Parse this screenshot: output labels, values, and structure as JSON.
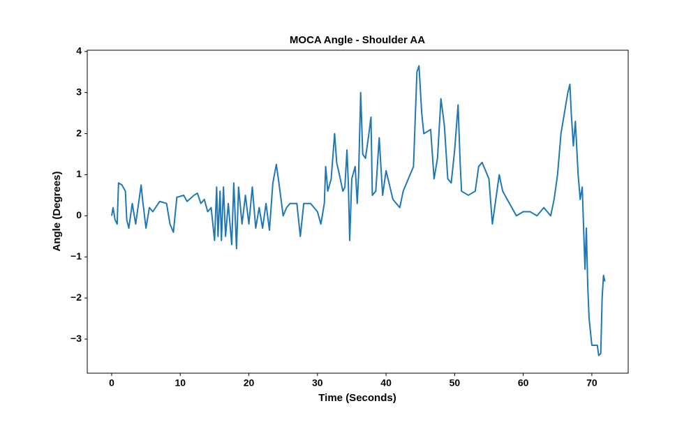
{
  "chart_data": {
    "type": "line",
    "title": "MOCA Angle - Shoulder AA",
    "x_label": "Time (Seconds)",
    "y_label": "Angle (Degrees)",
    "color": "#1f77b4",
    "grid": false,
    "xlim": [
      -3.56,
      75.3
    ],
    "ylim": [
      -3.83,
      4.03
    ],
    "xticks": [
      0,
      10,
      20,
      30,
      40,
      50,
      60,
      70
    ],
    "yticks": [
      {
        "value": -3,
        "label": "−3"
      },
      {
        "value": -2,
        "label": "−2"
      },
      {
        "value": -1,
        "label": "−1"
      },
      0,
      1,
      2,
      3,
      4
    ],
    "x": [
      0,
      0.2,
      0.5,
      0.8,
      1.0,
      1.5,
      2.0,
      2.2,
      2.5,
      3.0,
      3.5,
      4.0,
      4.3,
      4.5,
      5.0,
      5.5,
      6.0,
      7.0,
      8.0,
      8.5,
      9.0,
      9.5,
      10.5,
      11.0,
      12.0,
      12.5,
      13.0,
      13.5,
      14.0,
      14.5,
      15.0,
      15.3,
      15.5,
      15.8,
      16.0,
      16.3,
      16.6,
      17.0,
      17.5,
      17.8,
      18.2,
      18.5,
      19.0,
      19.5,
      20.0,
      20.5,
      21.0,
      21.5,
      22.0,
      22.5,
      23.0,
      23.5,
      24.0,
      24.3,
      25.0,
      25.5,
      26.0,
      27.0,
      27.5,
      28.0,
      29.0,
      30.0,
      30.5,
      31.0,
      31.2,
      31.5,
      32.0,
      32.5,
      32.8,
      33.2,
      33.7,
      34.0,
      34.3,
      34.5,
      34.7,
      35.0,
      35.5,
      35.8,
      36.0,
      36.3,
      36.6,
      37.0,
      37.5,
      37.8,
      38.0,
      38.5,
      39.0,
      39.5,
      40.0,
      41.0,
      41.5,
      42.0,
      42.5,
      43.0,
      43.5,
      44.0,
      44.5,
      44.8,
      45.2,
      45.5,
      46.5,
      47.0,
      47.5,
      48.0,
      48.5,
      49.0,
      49.5,
      50.0,
      50.5,
      50.8,
      51.0,
      52.0,
      53.0,
      53.5,
      54.0,
      55.0,
      55.5,
      56.0,
      56.5,
      57.0,
      58.0,
      59.0,
      60.0,
      61.0,
      62.0,
      63.0,
      64.0,
      64.5,
      65.0,
      65.5,
      66.0,
      66.5,
      66.8,
      67.0,
      67.3,
      67.6,
      68.0,
      68.3,
      68.6,
      69.0,
      69.2,
      69.4,
      69.6,
      70.0,
      70.8,
      71.0,
      71.3,
      71.5,
      71.7,
      71.9
    ],
    "values": [
      0.0,
      0.2,
      -0.1,
      -0.2,
      0.8,
      0.75,
      0.6,
      -0.1,
      -0.3,
      0.3,
      -0.2,
      0.4,
      0.75,
      0.4,
      -0.3,
      0.2,
      0.1,
      0.35,
      0.3,
      -0.2,
      -0.4,
      0.45,
      0.5,
      0.35,
      0.5,
      0.55,
      0.3,
      0.4,
      0.1,
      0.2,
      -0.6,
      0.7,
      -0.5,
      0.6,
      -0.6,
      0.7,
      -0.5,
      0.3,
      -0.7,
      0.8,
      -0.8,
      0.7,
      -0.2,
      0.5,
      -0.2,
      0.7,
      -0.3,
      0.2,
      -0.3,
      0.3,
      -0.35,
      0.8,
      1.25,
      0.9,
      0.0,
      0.2,
      0.3,
      0.3,
      -0.5,
      0.3,
      0.3,
      0.1,
      -0.2,
      0.3,
      1.2,
      0.6,
      0.9,
      2.0,
      1.3,
      1.0,
      0.6,
      0.7,
      1.6,
      0.8,
      -0.6,
      0.9,
      1.2,
      0.3,
      1.0,
      3.0,
      1.5,
      1.4,
      2.0,
      2.4,
      0.5,
      0.6,
      1.9,
      0.5,
      1.1,
      0.4,
      0.3,
      0.2,
      0.6,
      0.8,
      1.0,
      1.2,
      3.5,
      3.65,
      2.5,
      2.0,
      2.1,
      0.9,
      1.4,
      2.85,
      2.2,
      0.9,
      0.8,
      1.6,
      2.7,
      1.3,
      0.6,
      0.5,
      0.6,
      1.2,
      1.3,
      0.9,
      -0.2,
      0.4,
      1.0,
      0.6,
      0.3,
      0.0,
      0.1,
      0.1,
      0.0,
      0.2,
      0.0,
      0.4,
      1.0,
      2.0,
      2.5,
      3.0,
      3.2,
      2.5,
      1.7,
      2.3,
      1.0,
      0.4,
      0.7,
      -1.3,
      -0.3,
      -1.7,
      -2.5,
      -3.15,
      -3.15,
      -3.4,
      -3.35,
      -2.0,
      -1.45,
      -1.6
    ]
  }
}
